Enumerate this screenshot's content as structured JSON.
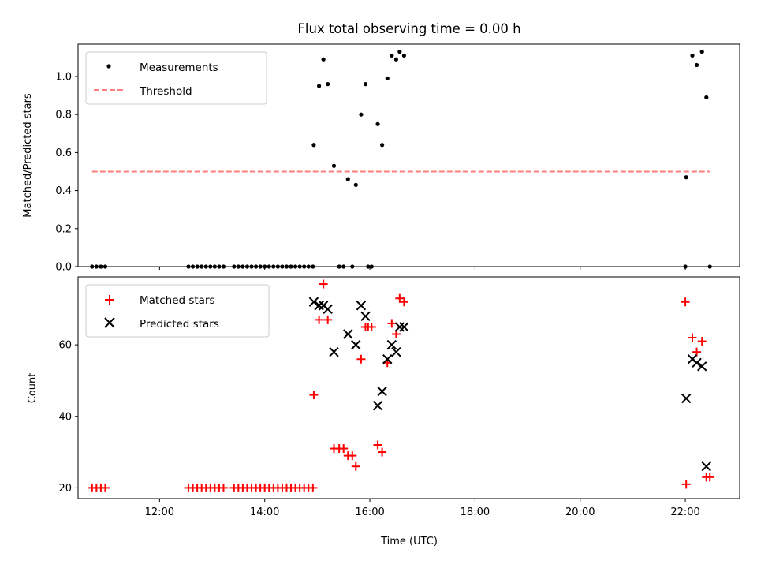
{
  "figure": {
    "title": "Flux total observing time = 0.00 h",
    "xlabel": "Time (UTC)",
    "x_ticks": [
      "12:00",
      "14:00",
      "16:00",
      "18:00",
      "20:00",
      "22:00"
    ]
  },
  "chart_data": [
    {
      "type": "scatter",
      "ylabel": "Matched/Predicted stars",
      "xlim": [
        "10:27",
        "23:02"
      ],
      "ylim": [
        0,
        1.17
      ],
      "y_ticks": [
        "0.0",
        "0.2",
        "0.4",
        "0.6",
        "0.8",
        "1.0"
      ],
      "legend_position": "top-left",
      "series": [
        {
          "name": "Measurements",
          "kind": "points",
          "color": "#000000",
          "points": [
            [
              "10:43",
              0.0
            ],
            [
              "10:48",
              0.0
            ],
            [
              "10:53",
              0.0
            ],
            [
              "10:58",
              0.0
            ],
            [
              "12:33",
              0.0
            ],
            [
              "12:38",
              0.0
            ],
            [
              "12:43",
              0.0
            ],
            [
              "12:48",
              0.0
            ],
            [
              "12:53",
              0.0
            ],
            [
              "12:58",
              0.0
            ],
            [
              "13:03",
              0.0
            ],
            [
              "13:08",
              0.0
            ],
            [
              "13:13",
              0.0
            ],
            [
              "13:25",
              0.0
            ],
            [
              "13:30",
              0.0
            ],
            [
              "13:35",
              0.0
            ],
            [
              "13:40",
              0.0
            ],
            [
              "13:45",
              0.0
            ],
            [
              "13:50",
              0.0
            ],
            [
              "13:55",
              0.0
            ],
            [
              "14:00",
              0.0
            ],
            [
              "14:05",
              0.0
            ],
            [
              "14:10",
              0.0
            ],
            [
              "14:15",
              0.0
            ],
            [
              "14:20",
              0.0
            ],
            [
              "14:25",
              0.0
            ],
            [
              "14:30",
              0.0
            ],
            [
              "14:35",
              0.0
            ],
            [
              "14:40",
              0.0
            ],
            [
              "14:45",
              0.0
            ],
            [
              "14:50",
              0.0
            ],
            [
              "14:55",
              0.0
            ],
            [
              "14:56",
              0.64
            ],
            [
              "15:02",
              0.95
            ],
            [
              "15:07",
              1.09
            ],
            [
              "15:12",
              0.96
            ],
            [
              "15:19",
              0.53
            ],
            [
              "15:25",
              0.0
            ],
            [
              "15:30",
              0.0
            ],
            [
              "15:35",
              0.46
            ],
            [
              "15:40",
              0.0
            ],
            [
              "15:44",
              0.43
            ],
            [
              "15:50",
              0.8
            ],
            [
              "15:55",
              0.96
            ],
            [
              "15:58",
              0.0
            ],
            [
              "16:02",
              0.0
            ],
            [
              "16:09",
              0.75
            ],
            [
              "16:14",
              0.64
            ],
            [
              "16:20",
              0.99
            ],
            [
              "16:25",
              1.11
            ],
            [
              "16:30",
              1.09
            ],
            [
              "16:34",
              1.13
            ],
            [
              "16:39",
              1.11
            ],
            [
              "22:00",
              0.0
            ],
            [
              "22:01",
              0.47
            ],
            [
              "22:08",
              1.11
            ],
            [
              "22:13",
              1.06
            ],
            [
              "22:19",
              1.13
            ],
            [
              "22:24",
              0.89
            ],
            [
              "22:28",
              0.0
            ]
          ]
        },
        {
          "name": "Threshold",
          "kind": "dashed-line",
          "color": "#ff7f7f",
          "points": [
            [
              "10:43",
              0.5
            ],
            [
              "22:28",
              0.5
            ]
          ]
        }
      ]
    },
    {
      "type": "scatter",
      "ylabel": "Count",
      "xlim": [
        "10:27",
        "23:02"
      ],
      "ylim": [
        17,
        79
      ],
      "y_ticks": [
        "20",
        "40",
        "60"
      ],
      "legend_position": "top-left",
      "series": [
        {
          "name": "Matched stars",
          "kind": "plus-markers",
          "color": "#ff0000",
          "points": [
            [
              "10:43",
              20
            ],
            [
              "10:48",
              20
            ],
            [
              "10:53",
              20
            ],
            [
              "10:58",
              20
            ],
            [
              "12:33",
              20
            ],
            [
              "12:38",
              20
            ],
            [
              "12:43",
              20
            ],
            [
              "12:48",
              20
            ],
            [
              "12:53",
              20
            ],
            [
              "12:58",
              20
            ],
            [
              "13:03",
              20
            ],
            [
              "13:08",
              20
            ],
            [
              "13:13",
              20
            ],
            [
              "13:25",
              20
            ],
            [
              "13:30",
              20
            ],
            [
              "13:35",
              20
            ],
            [
              "13:40",
              20
            ],
            [
              "13:45",
              20
            ],
            [
              "13:50",
              20
            ],
            [
              "13:55",
              20
            ],
            [
              "14:00",
              20
            ],
            [
              "14:05",
              20
            ],
            [
              "14:10",
              20
            ],
            [
              "14:15",
              20
            ],
            [
              "14:20",
              20
            ],
            [
              "14:25",
              20
            ],
            [
              "14:30",
              20
            ],
            [
              "14:35",
              20
            ],
            [
              "14:40",
              20
            ],
            [
              "14:45",
              20
            ],
            [
              "14:50",
              20
            ],
            [
              "14:55",
              20
            ],
            [
              "14:56",
              46
            ],
            [
              "15:02",
              67
            ],
            [
              "15:07",
              77
            ],
            [
              "15:12",
              67
            ],
            [
              "15:19",
              31
            ],
            [
              "15:25",
              31
            ],
            [
              "15:30",
              31
            ],
            [
              "15:35",
              29
            ],
            [
              "15:40",
              29
            ],
            [
              "15:44",
              26
            ],
            [
              "15:50",
              56
            ],
            [
              "15:55",
              65
            ],
            [
              "15:58",
              65
            ],
            [
              "16:02",
              65
            ],
            [
              "16:09",
              32
            ],
            [
              "16:14",
              30
            ],
            [
              "16:20",
              55
            ],
            [
              "16:25",
              66
            ],
            [
              "16:30",
              63
            ],
            [
              "16:34",
              73
            ],
            [
              "16:39",
              72
            ],
            [
              "22:00",
              72
            ],
            [
              "22:01",
              21
            ],
            [
              "22:08",
              62
            ],
            [
              "22:13",
              58
            ],
            [
              "22:19",
              61
            ],
            [
              "22:24",
              23
            ],
            [
              "22:28",
              23
            ]
          ]
        },
        {
          "name": "Predicted stars",
          "kind": "x-markers",
          "color": "#000000",
          "points": [
            [
              "14:56",
              72
            ],
            [
              "15:02",
              71
            ],
            [
              "15:07",
              71
            ],
            [
              "15:12",
              70
            ],
            [
              "15:19",
              58
            ],
            [
              "15:35",
              63
            ],
            [
              "15:44",
              60
            ],
            [
              "15:50",
              71
            ],
            [
              "15:55",
              68
            ],
            [
              "16:09",
              43
            ],
            [
              "16:14",
              47
            ],
            [
              "16:20",
              56
            ],
            [
              "16:25",
              60
            ],
            [
              "16:30",
              58
            ],
            [
              "16:34",
              65
            ],
            [
              "16:39",
              65
            ],
            [
              "22:01",
              45
            ],
            [
              "22:08",
              56
            ],
            [
              "22:13",
              55
            ],
            [
              "22:19",
              54
            ],
            [
              "22:24",
              26
            ]
          ]
        }
      ]
    }
  ]
}
